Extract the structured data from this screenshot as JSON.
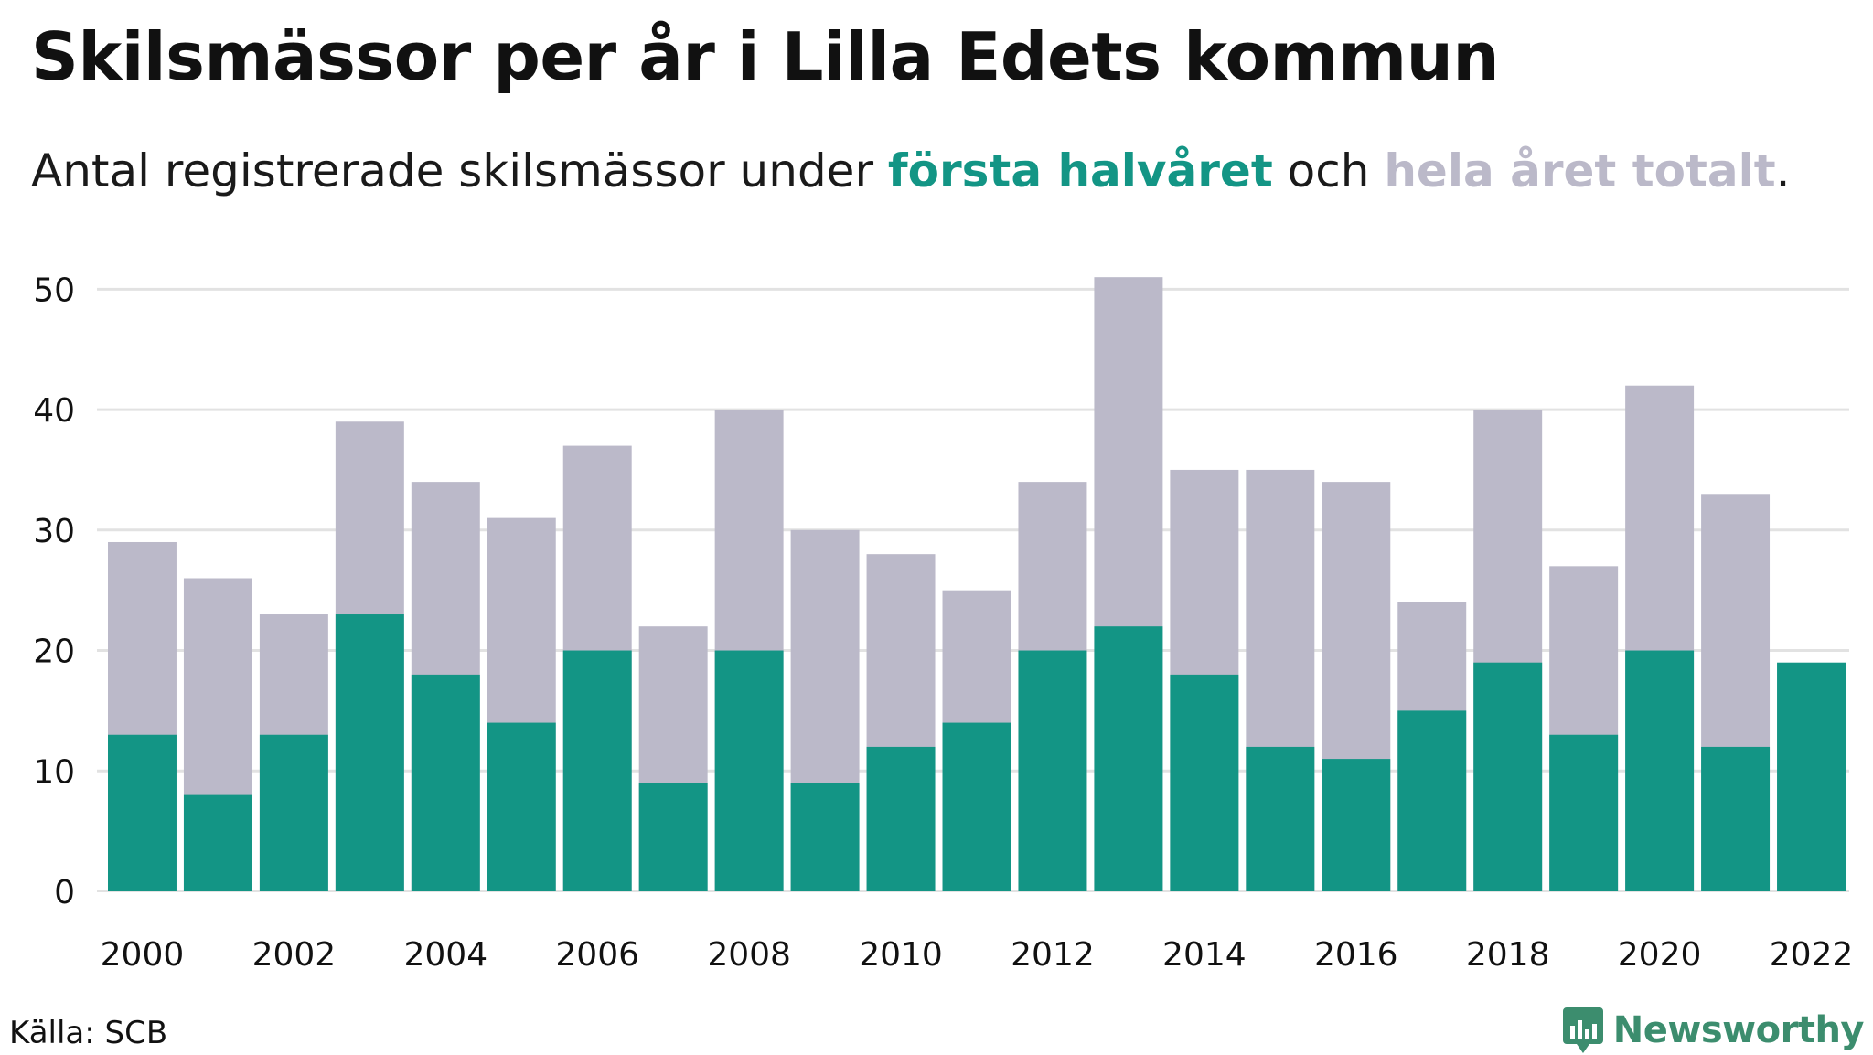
{
  "header": {
    "title": "Skilsmässor per år i Lilla Edets kommun",
    "subtitle_prefix": "Antal registrerade skilsmässor under ",
    "subtitle_first": "första halvåret",
    "subtitle_mid": " och ",
    "subtitle_total": "hela året totalt",
    "subtitle_suffix": "."
  },
  "footer": {
    "source": "Källa: SCB",
    "brand": "Newsworthy"
  },
  "colors": {
    "first_half": "#139585",
    "full_year": "#bbb9c9",
    "grid": "#e2e2e2",
    "brand": "#3c8d6e"
  },
  "chart_data": {
    "type": "bar",
    "categories": [
      "2000",
      "2001",
      "2002",
      "2003",
      "2004",
      "2005",
      "2006",
      "2007",
      "2008",
      "2009",
      "2010",
      "2011",
      "2012",
      "2013",
      "2014",
      "2015",
      "2016",
      "2017",
      "2018",
      "2019",
      "2020",
      "2021",
      "2022"
    ],
    "x_tick_labels": [
      "2000",
      "2002",
      "2004",
      "2006",
      "2008",
      "2010",
      "2012",
      "2014",
      "2016",
      "2018",
      "2020",
      "2022"
    ],
    "y_ticks": [
      0,
      10,
      20,
      30,
      40,
      50
    ],
    "ylim": [
      0,
      52
    ],
    "grid": true,
    "series": [
      {
        "key": "full_year",
        "values": [
          29,
          26,
          23,
          39,
          34,
          31,
          37,
          22,
          40,
          30,
          28,
          25,
          34,
          51,
          35,
          35,
          34,
          24,
          40,
          27,
          42,
          33,
          null
        ]
      },
      {
        "key": "first_half",
        "values": [
          13,
          8,
          13,
          23,
          18,
          14,
          20,
          9,
          20,
          9,
          12,
          14,
          20,
          22,
          18,
          12,
          11,
          15,
          19,
          13,
          20,
          12,
          19
        ]
      }
    ]
  }
}
